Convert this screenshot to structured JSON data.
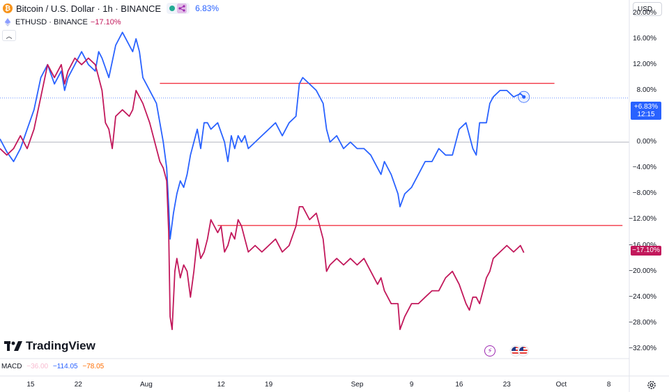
{
  "legend": {
    "main_title": "Bitcoin / U.S. Dollar · 1h · BINANCE",
    "main_change": "6.83%",
    "compare_symbol": "ETHUSD · BINANCE",
    "compare_change": "−17.10%"
  },
  "currency": "USD",
  "price_tags": {
    "btc_value": "+6.83%",
    "btc_countdown": "12:15",
    "eth_value": "−17.10%"
  },
  "logo_text": "TradingView",
  "macd": {
    "label": "MACD",
    "v1": "−36.00",
    "v2": "−114.05",
    "v3": "−78.05"
  },
  "colors": {
    "btc_line": "#2962ff",
    "eth_line": "#c2185b",
    "horizontal_lines": "#f23645",
    "zero_line": "#b2b5be"
  },
  "icons": {
    "main_symbol": "bitcoin-icon",
    "compare_symbol": "ethereum-icon",
    "event_1": "lightning-icon",
    "event_2": "us-flag-icon",
    "settings": "gear-icon"
  },
  "chart_data": {
    "type": "line",
    "y_axis_unit": "percent change",
    "y_ticks": [
      "20.00%",
      "16.00%",
      "12.00%",
      "8.00%",
      "4.00%",
      "0.00%",
      "−4.00%",
      "−8.00%",
      "−12.00%",
      "−16.00%",
      "−20.00%",
      "−24.00%",
      "−28.00%",
      "−32.00%"
    ],
    "y_tick_values": [
      20,
      16,
      12,
      8,
      4,
      0,
      -4,
      -8,
      -12,
      -16,
      -20,
      -24,
      -28,
      -32
    ],
    "ylim": [
      -33.5,
      22
    ],
    "x_ticks": [
      "15",
      "22",
      "Aug",
      "12",
      "19",
      "Sep",
      "9",
      "16",
      "23",
      "Oct",
      "8"
    ],
    "x_tick_days": [
      15,
      22,
      32,
      43,
      50,
      63,
      71,
      78,
      85,
      93,
      100
    ],
    "xlim": [
      10.5,
      103
    ],
    "x_unit": "day (Jul 1 = 1)",
    "series": [
      {
        "symbol": "BTCUSD",
        "last_value": 6.83,
        "points": [
          [
            10.5,
            0.5
          ],
          [
            11.5,
            -1.5
          ],
          [
            12.5,
            -3
          ],
          [
            13.5,
            -1
          ],
          [
            14.5,
            2
          ],
          [
            15.5,
            5
          ],
          [
            16.5,
            10
          ],
          [
            17.5,
            12
          ],
          [
            18.5,
            9
          ],
          [
            19.5,
            11
          ],
          [
            20,
            8
          ],
          [
            20.5,
            10
          ],
          [
            21.5,
            12
          ],
          [
            22.5,
            14
          ],
          [
            23.5,
            12
          ],
          [
            24.5,
            11
          ],
          [
            25,
            14
          ],
          [
            25.5,
            13
          ],
          [
            26.5,
            10
          ],
          [
            27.5,
            15
          ],
          [
            28.5,
            17
          ],
          [
            29,
            16
          ],
          [
            29.5,
            15
          ],
          [
            30,
            14
          ],
          [
            30.5,
            16
          ],
          [
            31,
            14
          ],
          [
            31.5,
            10
          ],
          [
            32.5,
            8
          ],
          [
            33.5,
            6
          ],
          [
            34,
            3
          ],
          [
            34.5,
            0
          ],
          [
            35,
            -4
          ],
          [
            35.3,
            -10
          ],
          [
            35.5,
            -15
          ],
          [
            36,
            -11
          ],
          [
            36.5,
            -8
          ],
          [
            37,
            -6
          ],
          [
            37.5,
            -7
          ],
          [
            38,
            -5
          ],
          [
            38.5,
            -2
          ],
          [
            39,
            0
          ],
          [
            39.5,
            2
          ],
          [
            40,
            -1
          ],
          [
            40.5,
            3
          ],
          [
            41,
            3
          ],
          [
            41.5,
            2
          ],
          [
            42.5,
            3
          ],
          [
            43.5,
            0
          ],
          [
            44,
            -3
          ],
          [
            44.5,
            1
          ],
          [
            45,
            -1
          ],
          [
            45.5,
            1
          ],
          [
            46,
            0
          ],
          [
            46.5,
            1
          ],
          [
            47,
            -1
          ],
          [
            48,
            0
          ],
          [
            49,
            1
          ],
          [
            50,
            2
          ],
          [
            51,
            3
          ],
          [
            52,
            1
          ],
          [
            53,
            3
          ],
          [
            54,
            4
          ],
          [
            54.5,
            9
          ],
          [
            55,
            10
          ],
          [
            56,
            9
          ],
          [
            57,
            8
          ],
          [
            58,
            6
          ],
          [
            58.5,
            2
          ],
          [
            59,
            0
          ],
          [
            60,
            1
          ],
          [
            61,
            -1
          ],
          [
            62,
            0
          ],
          [
            63,
            -1
          ],
          [
            64,
            -1
          ],
          [
            65,
            -2
          ],
          [
            66,
            -4
          ],
          [
            66.5,
            -5
          ],
          [
            67,
            -3
          ],
          [
            68,
            -5
          ],
          [
            69,
            -8
          ],
          [
            69.3,
            -10
          ],
          [
            70,
            -8
          ],
          [
            71,
            -7
          ],
          [
            72,
            -5
          ],
          [
            73,
            -3
          ],
          [
            74,
            -3
          ],
          [
            75,
            -1
          ],
          [
            76,
            -2
          ],
          [
            77,
            -2
          ],
          [
            78,
            2
          ],
          [
            79,
            3
          ],
          [
            79.5,
            1
          ],
          [
            80,
            -1
          ],
          [
            80.5,
            -2
          ],
          [
            81,
            3
          ],
          [
            82,
            3
          ],
          [
            82.5,
            6
          ],
          [
            83,
            7
          ],
          [
            84,
            8
          ],
          [
            85,
            8
          ],
          [
            86,
            7
          ],
          [
            87,
            7.5
          ],
          [
            87.5,
            7
          ]
        ]
      },
      {
        "symbol": "ETHUSD",
        "last_value": -17.1,
        "points": [
          [
            10.5,
            -1
          ],
          [
            11.5,
            -2
          ],
          [
            12.5,
            -1
          ],
          [
            13.5,
            1
          ],
          [
            14.5,
            -1
          ],
          [
            15.5,
            2
          ],
          [
            16.5,
            7
          ],
          [
            17.5,
            12
          ],
          [
            18.5,
            10
          ],
          [
            19.5,
            12
          ],
          [
            20,
            9
          ],
          [
            20.5,
            11
          ],
          [
            21.5,
            13
          ],
          [
            22.5,
            12
          ],
          [
            23.5,
            13
          ],
          [
            24.5,
            12
          ],
          [
            25,
            10
          ],
          [
            25.5,
            8
          ],
          [
            26,
            3
          ],
          [
            26.5,
            2
          ],
          [
            27,
            -1
          ],
          [
            27.5,
            4
          ],
          [
            28.5,
            5
          ],
          [
            29.5,
            4
          ],
          [
            30,
            5
          ],
          [
            30.5,
            8
          ],
          [
            31,
            7
          ],
          [
            31.5,
            6
          ],
          [
            32.5,
            3
          ],
          [
            33.5,
            -1
          ],
          [
            34,
            -3
          ],
          [
            34.5,
            -4
          ],
          [
            35,
            -6
          ],
          [
            35.3,
            -14
          ],
          [
            35.5,
            -27
          ],
          [
            35.8,
            -29
          ],
          [
            36.2,
            -20
          ],
          [
            36.5,
            -18
          ],
          [
            37,
            -21
          ],
          [
            37.5,
            -19
          ],
          [
            38,
            -20
          ],
          [
            38.5,
            -24
          ],
          [
            39,
            -20
          ],
          [
            39.5,
            -15
          ],
          [
            40,
            -18
          ],
          [
            40.5,
            -17
          ],
          [
            41,
            -15
          ],
          [
            41.5,
            -12
          ],
          [
            42.5,
            -14
          ],
          [
            43,
            -13
          ],
          [
            43.5,
            -17
          ],
          [
            44,
            -16
          ],
          [
            44.5,
            -14
          ],
          [
            45,
            -15
          ],
          [
            45.5,
            -12
          ],
          [
            46,
            -13
          ],
          [
            46.5,
            -15
          ],
          [
            47,
            -17
          ],
          [
            48,
            -16
          ],
          [
            49,
            -17
          ],
          [
            50,
            -16
          ],
          [
            51,
            -15
          ],
          [
            52,
            -17
          ],
          [
            53,
            -16
          ],
          [
            54,
            -13
          ],
          [
            54.5,
            -10
          ],
          [
            55,
            -10
          ],
          [
            56,
            -12
          ],
          [
            57,
            -11
          ],
          [
            58,
            -15
          ],
          [
            58.5,
            -20
          ],
          [
            59,
            -19
          ],
          [
            60,
            -18
          ],
          [
            61,
            -19
          ],
          [
            62,
            -18
          ],
          [
            63,
            -19
          ],
          [
            64,
            -18
          ],
          [
            65,
            -20
          ],
          [
            66,
            -22
          ],
          [
            66.5,
            -21
          ],
          [
            67,
            -23
          ],
          [
            68,
            -25
          ],
          [
            69,
            -25
          ],
          [
            69.3,
            -29
          ],
          [
            70,
            -27
          ],
          [
            71,
            -25
          ],
          [
            72,
            -25
          ],
          [
            73,
            -24
          ],
          [
            74,
            -23
          ],
          [
            75,
            -23
          ],
          [
            76,
            -21
          ],
          [
            77,
            -20
          ],
          [
            78,
            -22
          ],
          [
            79,
            -25
          ],
          [
            79.5,
            -26
          ],
          [
            80,
            -24
          ],
          [
            80.5,
            -24
          ],
          [
            81,
            -25
          ],
          [
            82,
            -21
          ],
          [
            82.5,
            -20
          ],
          [
            83,
            -18
          ],
          [
            84,
            -17
          ],
          [
            85,
            -16
          ],
          [
            86,
            -17
          ],
          [
            87,
            -16
          ],
          [
            87.5,
            -17.1
          ]
        ]
      }
    ],
    "horizontal_lines": [
      {
        "y": 9.1,
        "x_start": 34,
        "x_end": 92
      },
      {
        "y": -12.9,
        "x_start": 42.5,
        "x_end": 102
      }
    ],
    "zero_line": 0,
    "grid": false,
    "legend": "top-left"
  }
}
